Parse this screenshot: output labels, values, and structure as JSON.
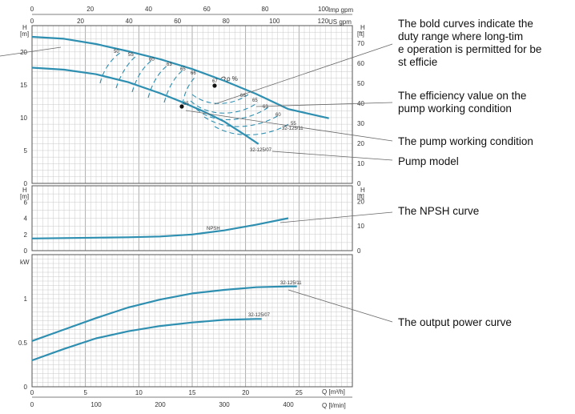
{
  "colors": {
    "curve": "#2e8fb1",
    "grid": "#c9c9c9",
    "frame": "#555555",
    "leader": "#666666",
    "text": "#111111"
  },
  "axes": {
    "imp_gpm": {
      "unit": "Imp gpm",
      "ticks": [
        "0",
        "20",
        "40",
        "60",
        "80",
        "100"
      ]
    },
    "us_gpm": {
      "unit": "US gpm",
      "ticks": [
        "0",
        "20",
        "40",
        "60",
        "80",
        "100",
        "120"
      ]
    },
    "head_m": {
      "unit": "H\n[m]",
      "ticks": [
        "0",
        "5",
        "10",
        "15",
        "20"
      ]
    },
    "head_ft": {
      "unit": "H\n[ft]",
      "ticks": [
        "0",
        "10",
        "20",
        "30",
        "40",
        "50",
        "60",
        "70"
      ]
    },
    "npsh_m": {
      "unit": "H\n[m]",
      "ticks": [
        "0",
        "2",
        "4",
        "6"
      ]
    },
    "npsh_ft": {
      "unit": "H\n[ft]",
      "ticks": [
        "0",
        "10",
        "20"
      ]
    },
    "power_kw": {
      "unit": "kW",
      "ticks": [
        "0",
        "0.5",
        "1"
      ]
    },
    "q_m3h": {
      "unit": "Q [m³/h]",
      "ticks": [
        "0",
        "5",
        "10",
        "15",
        "20",
        "25"
      ]
    },
    "q_lmin": {
      "unit": "Q [l/min]",
      "ticks": [
        "0",
        "100",
        "200",
        "300",
        "400"
      ]
    }
  },
  "curve_labels": {
    "model_a": "32-125/11",
    "model_b": "32-125/07",
    "efficiency_marker": "ρ %",
    "npsh": "NPSH",
    "efficiency_left": [
      "50",
      "55",
      "60",
      "63",
      "65",
      "66",
      "67"
    ],
    "efficiency_right": [
      "66",
      "65",
      "63",
      "60",
      "55"
    ],
    "efficiency_on_curve": "65",
    "power_a": "32-125/11",
    "power_b": "32-125/07"
  },
  "annotations": {
    "bold_curves": "The bold curves indicate the duty range where long-time operation is permitted for best efficiency",
    "efficiency_value": "The efficiency value on the pump working condition",
    "working_condition": "The pump working condition",
    "pump_model": "Pump model",
    "npsh_curve": "The NPSH curve",
    "power_curve": "The output power curve"
  },
  "chart_data": [
    {
      "type": "line",
      "title": "",
      "xlabel": "Q [m³/h]",
      "ylabel": "H [m]",
      "xlim": [
        0,
        30
      ],
      "ylim": [
        0,
        24
      ],
      "series": [
        {
          "name": "32-125/11",
          "x": [
            0,
            3,
            6,
            9,
            12,
            15,
            18,
            21,
            24,
            27.8
          ],
          "y": [
            22.3,
            22.0,
            21.2,
            20.1,
            18.9,
            17.4,
            15.6,
            13.6,
            11.3,
            9.9
          ]
        },
        {
          "name": "32-125/07",
          "x": [
            0,
            3,
            6,
            9,
            12,
            14,
            16,
            18,
            20,
            21.2
          ],
          "y": [
            17.6,
            17.3,
            16.6,
            15.4,
            13.7,
            12.4,
            11.0,
            9.4,
            7.3,
            6.0
          ]
        }
      ],
      "points": [
        {
          "label": "67",
          "x": 17.2,
          "y": 15.7
        },
        {
          "label": "65",
          "x": 14.0,
          "y": 12.5
        }
      ]
    },
    {
      "type": "line",
      "title": "",
      "xlabel": "Q [m³/h]",
      "ylabel": "H [m]",
      "xlim": [
        0,
        30
      ],
      "ylim": [
        0,
        8
      ],
      "series": [
        {
          "name": "NPSH",
          "x": [
            0,
            3,
            6,
            9,
            12,
            15,
            18,
            21,
            24
          ],
          "y": [
            1.5,
            1.55,
            1.6,
            1.65,
            1.75,
            2.0,
            2.5,
            3.2,
            4.0
          ]
        }
      ]
    },
    {
      "type": "line",
      "title": "",
      "xlabel": "Q [m³/h]",
      "ylabel": "kW",
      "xlim": [
        0,
        30
      ],
      "ylim": [
        0,
        1.5
      ],
      "series": [
        {
          "name": "32-125/11",
          "x": [
            0,
            3,
            6,
            9,
            12,
            15,
            18,
            21,
            24,
            24.8
          ],
          "y": [
            0.52,
            0.65,
            0.78,
            0.9,
            0.99,
            1.06,
            1.1,
            1.13,
            1.14,
            1.14
          ]
        },
        {
          "name": "32-125/07",
          "x": [
            0,
            3,
            6,
            9,
            12,
            15,
            18,
            21,
            21.5
          ],
          "y": [
            0.3,
            0.43,
            0.55,
            0.63,
            0.69,
            0.73,
            0.76,
            0.77,
            0.77
          ]
        }
      ]
    }
  ]
}
